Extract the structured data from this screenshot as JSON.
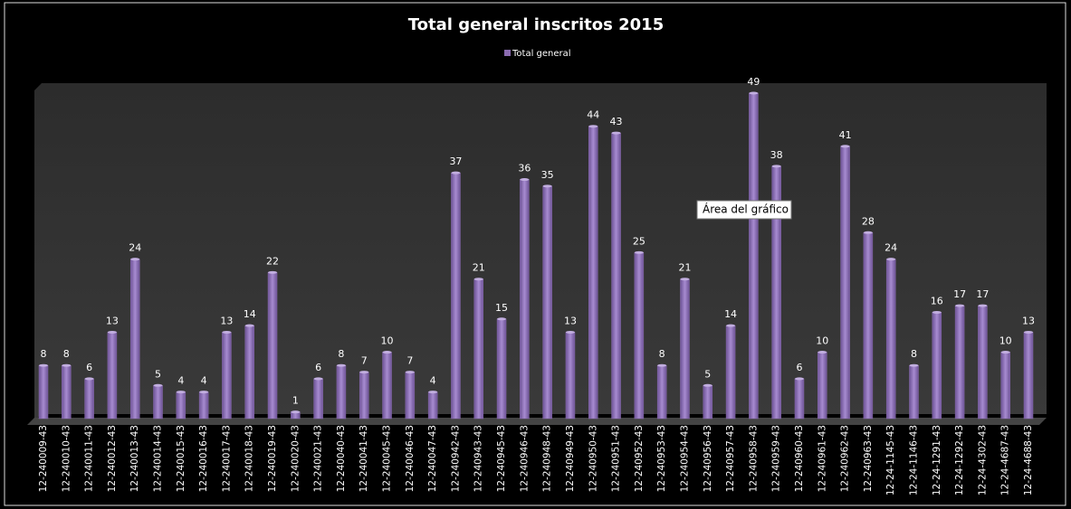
{
  "chart_data": {
    "type": "bar",
    "title": "Total general inscritos 2015",
    "categories": [
      "12-240009-43",
      "12-240010-43",
      "12-240011-43",
      "12-240012-43",
      "12-240013-43",
      "12-240014-43",
      "12-240015-43",
      "12-240016-43",
      "12-240017-43",
      "12-240018-43",
      "12-240019-43",
      "12-240020-43",
      "12-240021-43",
      "12-240040-43",
      "12-240041-43",
      "12-240045-43",
      "12-240046-43",
      "12-240047-43",
      "12-240942-43",
      "12-240943-43",
      "12-240945-43",
      "12-240946-43",
      "12-240948-43",
      "12-240949-43",
      "12-240950-43",
      "12-240951-43",
      "12-240952-43",
      "12-240953-43",
      "12-240954-43",
      "12-240956-43",
      "12-240957-43",
      "12-240958-43",
      "12-240959-43",
      "12-240960-43",
      "12-240961-43",
      "12-240962-43",
      "12-240963-43",
      "12-24-1145-43",
      "12-24-1146-43",
      "12-24-1291-43",
      "12-24-1292-43",
      "12-24-4302-43",
      "12-24-4687-43",
      "12-24-4688-43"
    ],
    "series": [
      {
        "name": "Total general",
        "color": "#8a6bb0",
        "values": [
          8,
          8,
          6,
          13,
          24,
          5,
          4,
          4,
          13,
          14,
          22,
          1,
          6,
          8,
          7,
          10,
          7,
          4,
          37,
          21,
          15,
          36,
          35,
          13,
          44,
          43,
          25,
          8,
          21,
          5,
          14,
          49,
          38,
          6,
          10,
          41,
          28,
          24,
          8,
          16,
          17,
          17,
          10,
          13
        ]
      }
    ],
    "legend": "top",
    "tooltip": "Área del gráfico"
  }
}
